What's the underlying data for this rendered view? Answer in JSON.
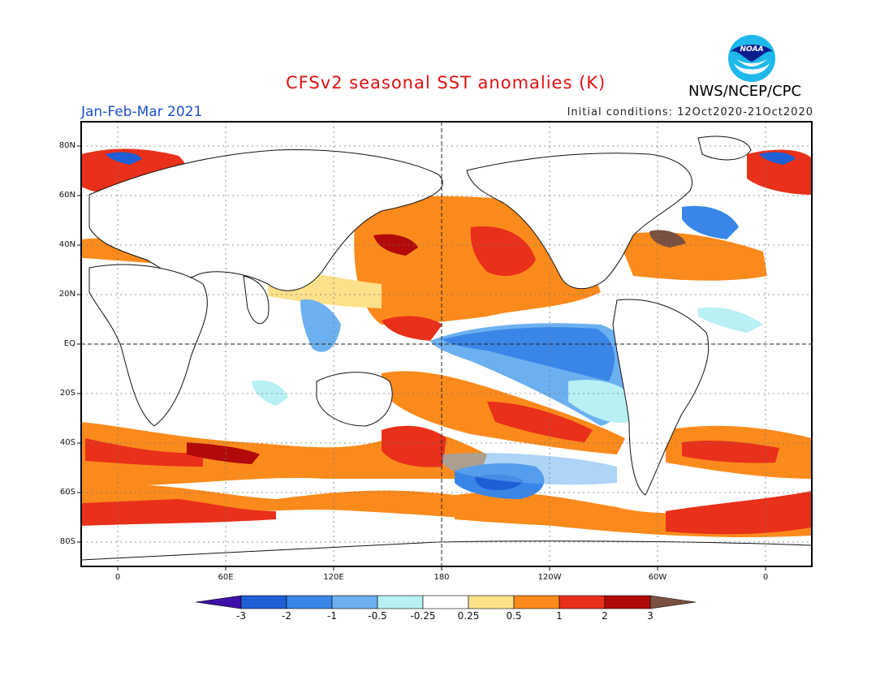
{
  "header": {
    "title": "CFSv2 seasonal SST anomalies (K)",
    "season": "Jan-Feb-Mar 2021",
    "initial_conditions": "Initial conditions: 12Oct2020-21Oct2020",
    "agency": "NWS/NCEP/CPC",
    "logo_text": "NOAA"
  },
  "map": {
    "lat_labels": [
      "80N",
      "60N",
      "40N",
      "20N",
      "EQ",
      "20S",
      "40S",
      "60S",
      "80S"
    ],
    "lon_labels": [
      "0",
      "60E",
      "120E",
      "180",
      "120W",
      "60W",
      "0"
    ]
  },
  "colorbar": {
    "labels": [
      "-3",
      "-2",
      "-1",
      "-0.5",
      "-0.25",
      "0.25",
      "0.5",
      "1",
      "2",
      "3"
    ],
    "colors": [
      "#3d10a8",
      "#1e5fd6",
      "#3a86e8",
      "#6cb0f0",
      "#b8f0f4",
      "#ffffff",
      "#fde08a",
      "#fb8a1c",
      "#e8301a",
      "#b20a0a",
      "#7a5040"
    ]
  }
}
